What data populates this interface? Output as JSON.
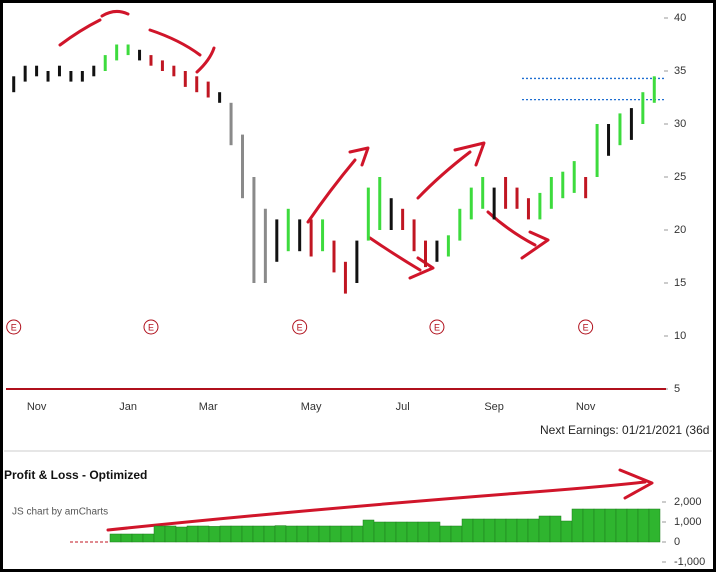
{
  "chart_data": [
    {
      "type": "ohlc",
      "categories": [
        null,
        null,
        "Nov",
        null,
        null,
        null,
        null,
        null,
        null,
        null,
        "Jan",
        null,
        null,
        null,
        null,
        null,
        null,
        "Mar",
        null,
        null,
        null,
        null,
        null,
        null,
        null,
        null,
        "May",
        null,
        null,
        null,
        null,
        null,
        null,
        null,
        "Jul",
        null,
        null,
        null,
        null,
        null,
        null,
        null,
        "Sep",
        null,
        null,
        null,
        null,
        null,
        null,
        null,
        "Nov",
        null,
        null,
        null,
        null,
        null,
        null
      ],
      "high": [
        34.5,
        35.5,
        35.5,
        35,
        35.5,
        35,
        35,
        35.5,
        36.5,
        37.5,
        37.5,
        37,
        36.5,
        36,
        35.5,
        35,
        34.5,
        34,
        33,
        32,
        29,
        25,
        22,
        21,
        22,
        21,
        21,
        21,
        19,
        17,
        19,
        24,
        25,
        23,
        22,
        21,
        19,
        19,
        19.5,
        22,
        24,
        25,
        24,
        25,
        24,
        23,
        23.5,
        25,
        25.5,
        26.5,
        25,
        30,
        30,
        31,
        31.5,
        33,
        34.5
      ],
      "low": [
        33,
        34,
        34.5,
        34,
        34.5,
        34,
        34,
        34.5,
        35,
        36,
        36.5,
        36,
        35.5,
        35,
        34.5,
        33.5,
        33,
        32.5,
        32,
        28,
        23,
        15,
        15,
        17,
        18,
        18,
        17.5,
        18,
        16,
        14,
        15,
        19,
        20,
        20,
        20,
        18,
        16.5,
        17,
        17.5,
        19,
        21,
        22,
        21,
        22,
        22,
        21,
        21,
        22,
        23,
        23.5,
        23,
        25,
        27,
        28,
        28.5,
        30,
        32
      ],
      "colors": [
        "#111",
        "#111",
        "#111",
        "#111",
        "#111",
        "#111",
        "#111",
        "#111",
        "#3ddb3d",
        "#3ddb3d",
        "#3ddb3d",
        "#111",
        "#c01622",
        "#c01622",
        "#c01622",
        "#c01622",
        "#c01622",
        "#c01622",
        "#111",
        "#8a8a8a",
        "#8a8a8a",
        "#8a8a8a",
        "#8a8a8a",
        "#111",
        "#3ddb3d",
        "#111",
        "#c01622",
        "#3ddb3d",
        "#c01622",
        "#c01622",
        "#111",
        "#3ddb3d",
        "#3ddb3d",
        "#111",
        "#c01622",
        "#c01622",
        "#c01622",
        "#111",
        "#3ddb3d",
        "#3ddb3d",
        "#3ddb3d",
        "#3ddb3d",
        "#111",
        "#c01622",
        "#c01622",
        "#c01622",
        "#3ddb3d",
        "#3ddb3d",
        "#3ddb3d",
        "#3ddb3d",
        "#c01622",
        "#3ddb3d",
        "#111",
        "#3ddb3d",
        "#111",
        "#3ddb3d",
        "#3ddb3d"
      ],
      "ylim": [
        5,
        40
      ],
      "yticks": [
        5,
        10,
        15,
        20,
        25,
        30,
        35,
        40
      ],
      "levels": [
        34.3,
        32.3
      ],
      "level_color": "#1f6fd1",
      "baseline_color": "#b0101c",
      "events": {
        "label": "E",
        "positions": [
          0,
          12,
          25,
          37,
          50
        ],
        "color": "#b0101c"
      },
      "footer": "Next Earnings: 01/21/2021 (36d"
    },
    {
      "type": "bar",
      "title": "Profit & Loss - Optimized",
      "credit": "JS chart by amCharts",
      "values": [
        400,
        400,
        400,
        400,
        800,
        800,
        750,
        800,
        800,
        780,
        800,
        800,
        800,
        800,
        800,
        820,
        800,
        800,
        800,
        800,
        800,
        800,
        800,
        1100,
        1000,
        1000,
        1000,
        1000,
        1000,
        1000,
        800,
        800,
        1150,
        1150,
        1150,
        1150,
        1150,
        1150,
        1150,
        1300,
        1300,
        1050,
        1650,
        1650,
        1650,
        1650,
        1650,
        1650,
        1650,
        1650
      ],
      "color": "#2fb52f",
      "ylim": [
        -1000,
        2000
      ],
      "yticks": [
        {
          "value": 2000,
          "label": "2,000"
        },
        {
          "value": 1000,
          "label": "1,000"
        },
        0,
        {
          "value": -1000,
          "label": "-1,000"
        }
      ]
    }
  ]
}
